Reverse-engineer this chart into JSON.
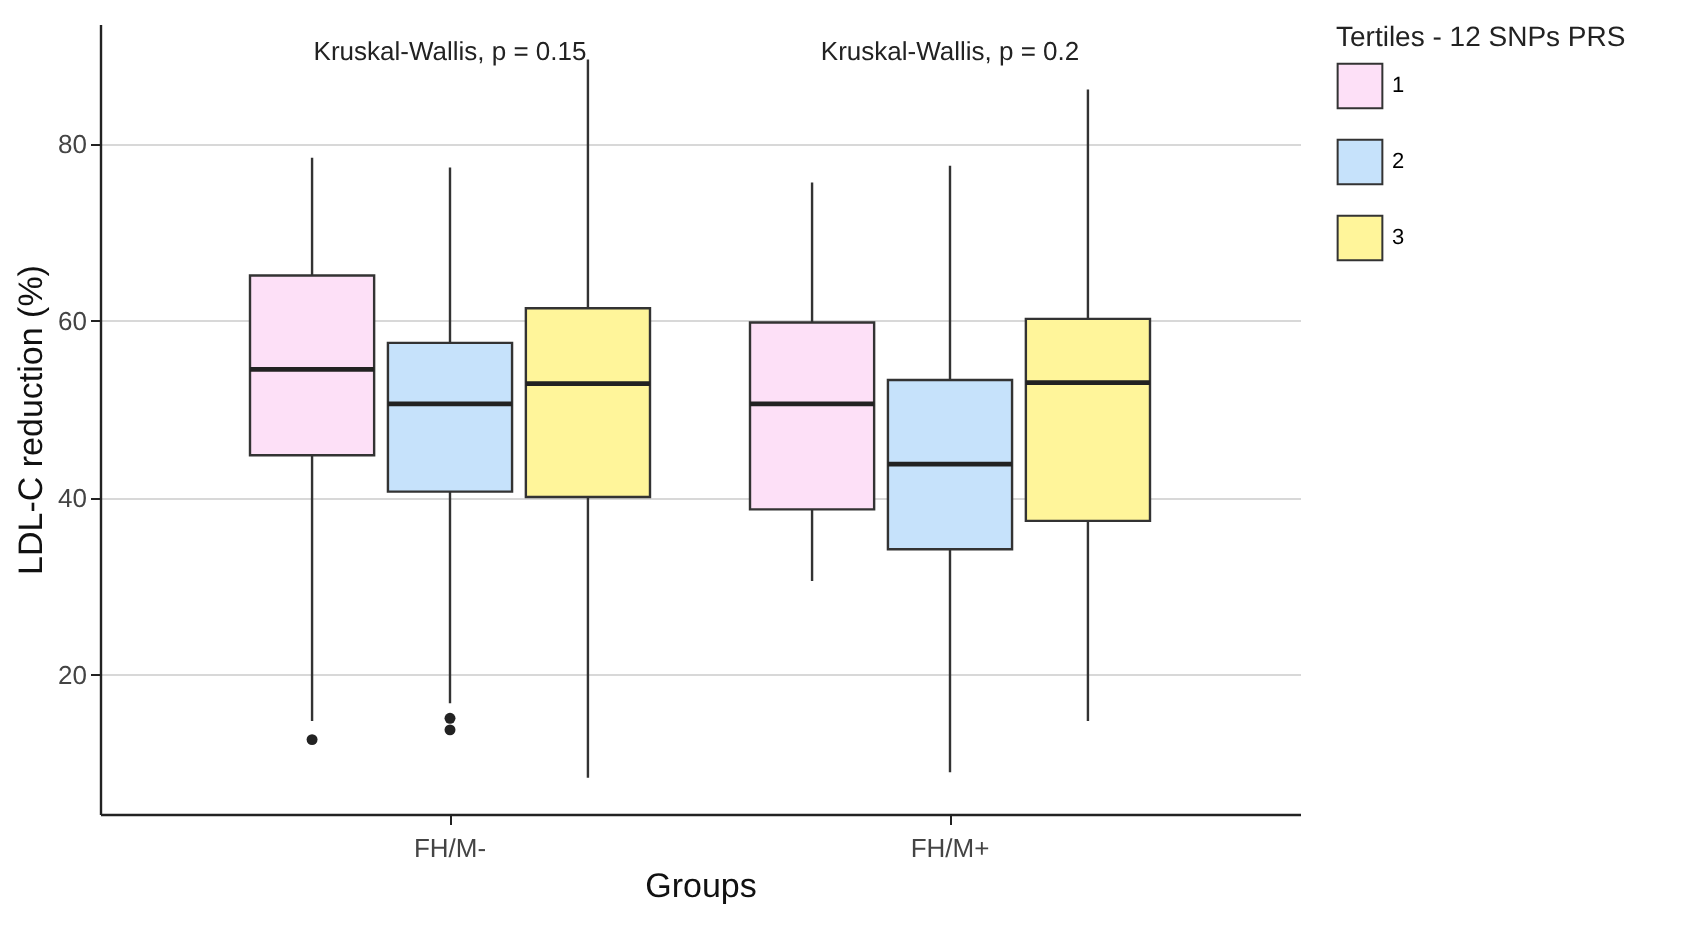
{
  "chart_data": {
    "type": "box",
    "xlabel": "Groups",
    "ylabel": "LDL-C reduction (%)",
    "legend_title": "Tertiles - 12 SNPs PRS",
    "legend": "right",
    "grid": "y",
    "categories": [
      "FH/M-",
      "FH/M+"
    ],
    "ylim": [
      4.3,
      93.5
    ],
    "yticks": [
      20,
      40,
      60,
      80
    ],
    "annotations": [
      "Kruskal-Wallis, p = 0.15",
      "Kruskal-Wallis, p = 0.2"
    ],
    "series": [
      {
        "name": "1",
        "color": "#fde0f7",
        "boxes": [
          {
            "low": 14.8,
            "q1": 44.8,
            "median": 54.5,
            "q3": 65.1,
            "high": 78.4,
            "outliers": [
              12.7
            ]
          },
          {
            "low": 30.6,
            "q1": 38.7,
            "median": 50.6,
            "q3": 59.8,
            "high": 75.6
          }
        ]
      },
      {
        "name": "2",
        "color": "#c6e2fb",
        "boxes": [
          {
            "low": 16.8,
            "q1": 40.7,
            "median": 50.6,
            "q3": 57.5,
            "high": 77.3,
            "outliers": [
              15.1,
              13.8
            ]
          },
          {
            "low": 9.0,
            "q1": 34.2,
            "median": 43.8,
            "q3": 53.3,
            "high": 77.5
          }
        ]
      },
      {
        "name": "3",
        "color": "#fff59a",
        "boxes": [
          {
            "low": 8.4,
            "q1": 40.1,
            "median": 52.9,
            "q3": 61.4,
            "high": 89.5
          },
          {
            "low": 14.8,
            "q1": 37.4,
            "median": 53.0,
            "q3": 60.2,
            "high": 86.1
          }
        ]
      }
    ]
  }
}
